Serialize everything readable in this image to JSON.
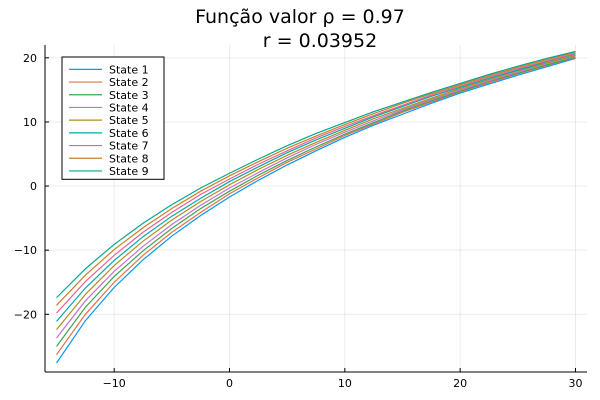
{
  "chart_data": {
    "type": "line",
    "title_lines": [
      "Função valor ρ = 0.97",
      "r = 0.03952"
    ],
    "xlabel": "",
    "ylabel": "",
    "xlim": [
      -16,
      31
    ],
    "ylim": [
      -29,
      22
    ],
    "xticks": [
      -10,
      0,
      10,
      20,
      30
    ],
    "yticks": [
      -20,
      -10,
      0,
      10,
      20
    ],
    "grid": true,
    "legend_position": "top-left",
    "x": [
      -15,
      -12.5,
      -10,
      -7.5,
      -5,
      -2.5,
      0,
      2.5,
      5,
      7.5,
      10,
      12.5,
      15,
      17.5,
      20,
      22.5,
      25,
      27.5,
      30
    ],
    "series": [
      {
        "name": "State 1",
        "color": "#009AFA",
        "values": [
          -27.6,
          -21.0,
          -15.8,
          -11.5,
          -7.8,
          -4.6,
          -1.7,
          0.9,
          3.3,
          5.5,
          7.6,
          9.5,
          11.2,
          12.9,
          14.5,
          15.9,
          17.3,
          18.6,
          19.9
        ]
      },
      {
        "name": "State 2",
        "color": "#E36F47",
        "values": [
          -26.3,
          -20.0,
          -15.0,
          -10.8,
          -7.2,
          -4.1,
          -1.2,
          1.3,
          3.7,
          5.8,
          7.9,
          9.7,
          11.5,
          13.1,
          14.7,
          16.1,
          17.5,
          18.8,
          20.0
        ]
      },
      {
        "name": "State 3",
        "color": "#3EA44E",
        "values": [
          -25.0,
          -18.9,
          -14.1,
          -10.1,
          -6.6,
          -3.5,
          -0.8,
          1.7,
          4.0,
          6.1,
          8.1,
          9.9,
          11.7,
          13.3,
          14.8,
          16.3,
          17.6,
          18.9,
          20.1
        ]
      },
      {
        "name": "State 4",
        "color": "#C371D2",
        "values": [
          -23.7,
          -17.9,
          -13.3,
          -9.4,
          -6.0,
          -3.0,
          -0.3,
          2.1,
          4.4,
          6.5,
          8.4,
          10.2,
          11.9,
          13.5,
          15.0,
          16.4,
          17.8,
          19.1,
          20.3
        ]
      },
      {
        "name": "State 5",
        "color": "#AC8E18",
        "values": [
          -22.4,
          -16.9,
          -12.4,
          -8.6,
          -5.3,
          -2.4,
          0.2,
          2.6,
          4.8,
          6.8,
          8.7,
          10.5,
          12.1,
          13.7,
          15.2,
          16.6,
          18.0,
          19.2,
          20.4
        ]
      },
      {
        "name": "State 6",
        "color": "#00AAAE",
        "values": [
          -21.1,
          -15.9,
          -11.6,
          -7.9,
          -4.7,
          -1.9,
          0.7,
          3.0,
          5.2,
          7.2,
          9.0,
          10.8,
          12.4,
          14.0,
          15.4,
          16.8,
          18.1,
          19.4,
          20.6
        ]
      },
      {
        "name": "State 7",
        "color": "#ED5E93",
        "values": [
          -19.8,
          -14.9,
          -10.8,
          -7.2,
          -4.1,
          -1.3,
          1.1,
          3.4,
          5.5,
          7.5,
          9.3,
          11.0,
          12.6,
          14.2,
          15.6,
          17.0,
          18.3,
          19.5,
          20.7
        ]
      },
      {
        "name": "State 8",
        "color": "#C68125",
        "values": [
          -18.6,
          -13.9,
          -9.9,
          -6.5,
          -3.5,
          -0.8,
          1.6,
          3.8,
          5.9,
          7.8,
          9.6,
          11.3,
          12.9,
          14.4,
          15.8,
          17.2,
          18.5,
          19.7,
          20.9
        ]
      },
      {
        "name": "State 9",
        "color": "#00A98D",
        "values": [
          -17.4,
          -12.9,
          -9.1,
          -5.8,
          -2.9,
          -0.3,
          2.0,
          4.2,
          6.3,
          8.2,
          9.9,
          11.6,
          13.1,
          14.6,
          16.0,
          17.4,
          18.7,
          19.9,
          21.0
        ]
      }
    ]
  }
}
